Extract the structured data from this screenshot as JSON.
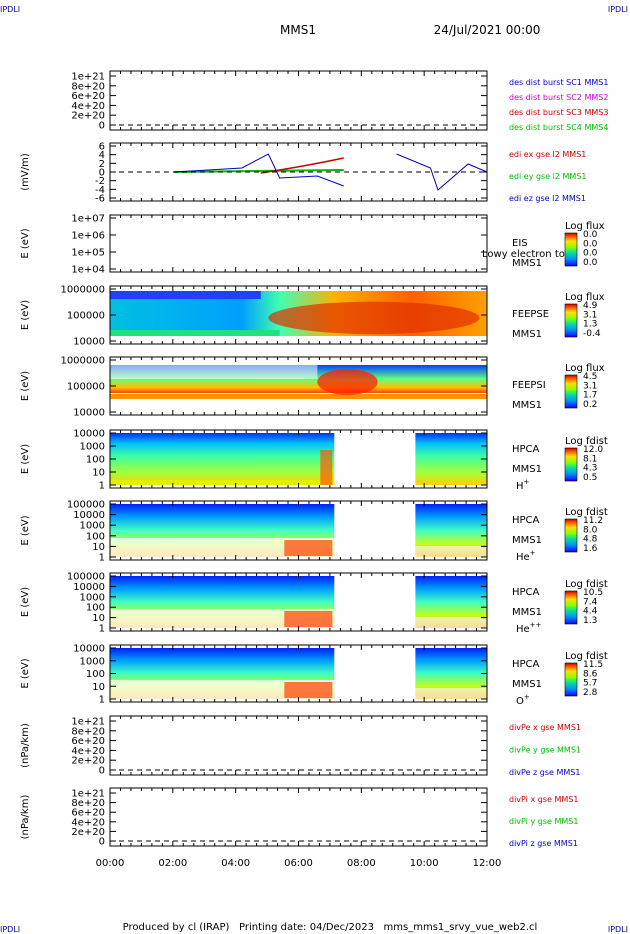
{
  "header": {
    "corner_tl": "IPDLI",
    "corner_tr": "IPDLI",
    "corner_bl": "IPDLI",
    "corner_br": "IPDLI",
    "spacecraft": "MMS1",
    "date": "24/Jul/2021 00:00"
  },
  "footer": {
    "text": "Produced by cl (IRAP)   Printing date: 04/Dec/2023   mms_mms1_srvy_vue_web2.cl"
  },
  "x_axis": {
    "ticks": [
      "00:00",
      "02:00",
      "04:00",
      "06:00",
      "08:00",
      "10:00",
      "12:00"
    ]
  },
  "chart_data": [
    {
      "type": "line",
      "ylabel": "",
      "ytick_labels": [
        "1e+21",
        "8e+20",
        "6e+20",
        "4e+20",
        "2e+20",
        "0"
      ],
      "legend": [
        {
          "text": "des dist burst SC1 MMS1",
          "color": "#0000cc"
        },
        {
          "text": "des dist burst SC2 MMS2",
          "color": "#cc00cc"
        },
        {
          "text": "des dist burst SC3 MMS3",
          "color": "#cc0000"
        },
        {
          "text": "des dist burst SC4 MMS4",
          "color": "#00bb00"
        }
      ]
    },
    {
      "type": "line",
      "ylabel": "(mV/m)",
      "ytick_labels": [
        "6",
        "4",
        "2",
        "0",
        "-2",
        "-4",
        "-6"
      ],
      "legend": [
        {
          "text": "edi ex gse l2 MMS1",
          "color": "#cc0000"
        },
        {
          "text": "edi ey gse l2 MMS1",
          "color": "#00bb00"
        },
        {
          "text": "edi ez gse l2 MMS1",
          "color": "#0000cc"
        }
      ]
    },
    {
      "type": "heatmap",
      "ylabel": "E (eV)",
      "ytick_labels": [
        "1e+07",
        "1e+06",
        "1e+05",
        "1e+04"
      ],
      "labels": [
        "EIS",
        "MMS1"
      ],
      "overlay_text": "Lowy electron tof",
      "colorbar": {
        "title": "Log flux",
        "ticks": [
          "0.0",
          "0.0",
          "0.0",
          "0.0"
        ]
      }
    },
    {
      "type": "heatmap",
      "ylabel": "E (eV)",
      "ytick_labels": [
        "1000000",
        "100000",
        "10000"
      ],
      "labels": [
        "FEEPSE",
        "MMS1"
      ],
      "colorbar": {
        "title": "Log flux",
        "ticks": [
          "4.9",
          "3.1",
          "1.3",
          "-0.4"
        ]
      }
    },
    {
      "type": "heatmap",
      "ylabel": "E (eV)",
      "ytick_labels": [
        "1000000",
        "100000",
        "10000"
      ],
      "labels": [
        "FEEPSI",
        "MMS1"
      ],
      "colorbar": {
        "title": "Log flux",
        "ticks": [
          "4.5",
          "3.1",
          "1.7",
          "0.2"
        ]
      }
    },
    {
      "type": "heatmap",
      "ylabel": "E (eV)",
      "ytick_labels": [
        "10000",
        "1000",
        "100",
        "10",
        "1"
      ],
      "labels": [
        "HPCA",
        "MMS1"
      ],
      "species": "H",
      "species_sup": "+",
      "colorbar": {
        "title": "Log fdist",
        "ticks": [
          "12.0",
          "8.1",
          "4.3",
          "0.5"
        ]
      }
    },
    {
      "type": "heatmap",
      "ylabel": "E (eV)",
      "ytick_labels": [
        "100000",
        "10000",
        "1000",
        "100",
        "10",
        "1"
      ],
      "labels": [
        "HPCA",
        "MMS1"
      ],
      "species": "He",
      "species_sup": "+",
      "colorbar": {
        "title": "Log fdist",
        "ticks": [
          "11.2",
          "8.0",
          "4.8",
          "1.6"
        ]
      }
    },
    {
      "type": "heatmap",
      "ylabel": "E (eV)",
      "ytick_labels": [
        "100000",
        "10000",
        "1000",
        "100",
        "10",
        "1"
      ],
      "labels": [
        "HPCA",
        "MMS1"
      ],
      "species": "He",
      "species_sup": "++",
      "colorbar": {
        "title": "Log fdist",
        "ticks": [
          "10.5",
          "7.4",
          "4.4",
          "1.3"
        ]
      }
    },
    {
      "type": "heatmap",
      "ylabel": "E (eV)",
      "ytick_labels": [
        "10000",
        "1000",
        "100",
        "10",
        "1"
      ],
      "labels": [
        "HPCA",
        "MMS1"
      ],
      "species": "O",
      "species_sup": "+",
      "colorbar": {
        "title": "Log fdist",
        "ticks": [
          "11.5",
          "8.6",
          "5.7",
          "2.8"
        ]
      }
    },
    {
      "type": "line",
      "ylabel": "(nPa/km)",
      "ytick_labels": [
        "1e+21",
        "8e+20",
        "6e+20",
        "4e+20",
        "2e+20",
        "0"
      ],
      "legend": [
        {
          "text": "divPe x gse MMS1",
          "color": "#cc0000"
        },
        {
          "text": "divPe y gse MMS1",
          "color": "#00bb00"
        },
        {
          "text": "divPe z gse MMS1",
          "color": "#0000cc"
        }
      ]
    },
    {
      "type": "line",
      "ylabel": "(nPa/km)",
      "ytick_labels": [
        "1e+21",
        "8e+20",
        "6e+20",
        "4e+20",
        "2e+20",
        "0"
      ],
      "legend": [
        {
          "text": "divPi x gse MMS1",
          "color": "#cc0000"
        },
        {
          "text": "divPi y gse MMS1",
          "color": "#00bb00"
        },
        {
          "text": "divPi z gse MMS1",
          "color": "#0000cc"
        }
      ]
    }
  ]
}
